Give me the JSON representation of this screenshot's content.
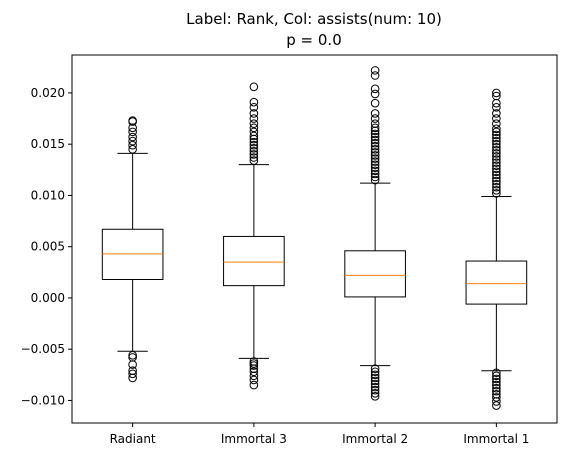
{
  "chart_data": {
    "type": "box",
    "title": "Label: Rank, Col: assists(num: 10)",
    "subtitle": "p = 0.0",
    "xlabel": "",
    "ylabel": "",
    "ylim": [
      -0.0122,
      0.0237
    ],
    "yticks": [
      -0.01,
      -0.005,
      0.0,
      0.005,
      0.01,
      0.015,
      0.02
    ],
    "ytick_labels": [
      "−0.010",
      "−0.005",
      "0.000",
      "0.005",
      "0.010",
      "0.015",
      "0.020"
    ],
    "grid": false,
    "colors": {
      "box": "#000000",
      "median": "#ff7f0e",
      "flier": "#000000"
    },
    "categories": [
      "Radiant",
      "Immortal 3",
      "Immortal 2",
      "Immortal 1"
    ],
    "boxes": [
      {
        "label": "Radiant",
        "whisker_low": -0.0052,
        "q1": 0.0018,
        "median": 0.0043,
        "q3": 0.0067,
        "whisker_high": 0.0141,
        "fliers": [
          0.0145,
          0.0149,
          0.0153,
          0.0157,
          0.0162,
          0.0166,
          0.0172,
          0.0173,
          -0.0056,
          -0.0058,
          -0.0065,
          -0.0071,
          -0.0074,
          -0.0078
        ]
      },
      {
        "label": "Immortal 3",
        "whisker_low": -0.0059,
        "q1": 0.0012,
        "median": 0.0035,
        "q3": 0.006,
        "whisker_high": 0.013,
        "fliers": [
          0.0134,
          0.0137,
          0.014,
          0.0143,
          0.0146,
          0.0149,
          0.0152,
          0.0155,
          0.0158,
          0.0162,
          0.0166,
          0.017,
          0.0175,
          0.018,
          0.0186,
          0.0191,
          0.0206,
          -0.0062,
          -0.0064,
          -0.0066,
          -0.0069,
          -0.0072,
          -0.0076,
          -0.008,
          -0.0085
        ]
      },
      {
        "label": "Immortal 2",
        "whisker_low": -0.0066,
        "q1": 0.0001,
        "median": 0.0022,
        "q3": 0.0046,
        "whisker_high": 0.0112,
        "fliers": [
          0.0115,
          0.0118,
          0.0121,
          0.0124,
          0.0127,
          0.013,
          0.0133,
          0.0136,
          0.0139,
          0.0142,
          0.0145,
          0.0148,
          0.0151,
          0.0154,
          0.0157,
          0.016,
          0.0163,
          0.0166,
          0.017,
          0.0175,
          0.018,
          0.019,
          0.0199,
          0.0204,
          0.0217,
          0.0222,
          -0.0069,
          -0.0072,
          -0.0075,
          -0.0078,
          -0.0081,
          -0.0084,
          -0.0087,
          -0.009,
          -0.0093,
          -0.0096
        ]
      },
      {
        "label": "Immortal 1",
        "whisker_low": -0.0071,
        "q1": -0.0006,
        "median": 0.0014,
        "q3": 0.0036,
        "whisker_high": 0.0099,
        "fliers": [
          0.0102,
          0.0105,
          0.0108,
          0.0111,
          0.0114,
          0.0117,
          0.012,
          0.0123,
          0.0126,
          0.0129,
          0.0132,
          0.0135,
          0.0138,
          0.0141,
          0.0144,
          0.0147,
          0.015,
          0.0153,
          0.0156,
          0.0159,
          0.0162,
          0.0165,
          0.017,
          0.0175,
          0.018,
          0.0186,
          0.019,
          0.0197,
          0.02,
          -0.0073,
          -0.0076,
          -0.0079,
          -0.0082,
          -0.0085,
          -0.0088,
          -0.0091,
          -0.0094,
          -0.0097,
          -0.0101,
          -0.0105
        ]
      }
    ]
  }
}
